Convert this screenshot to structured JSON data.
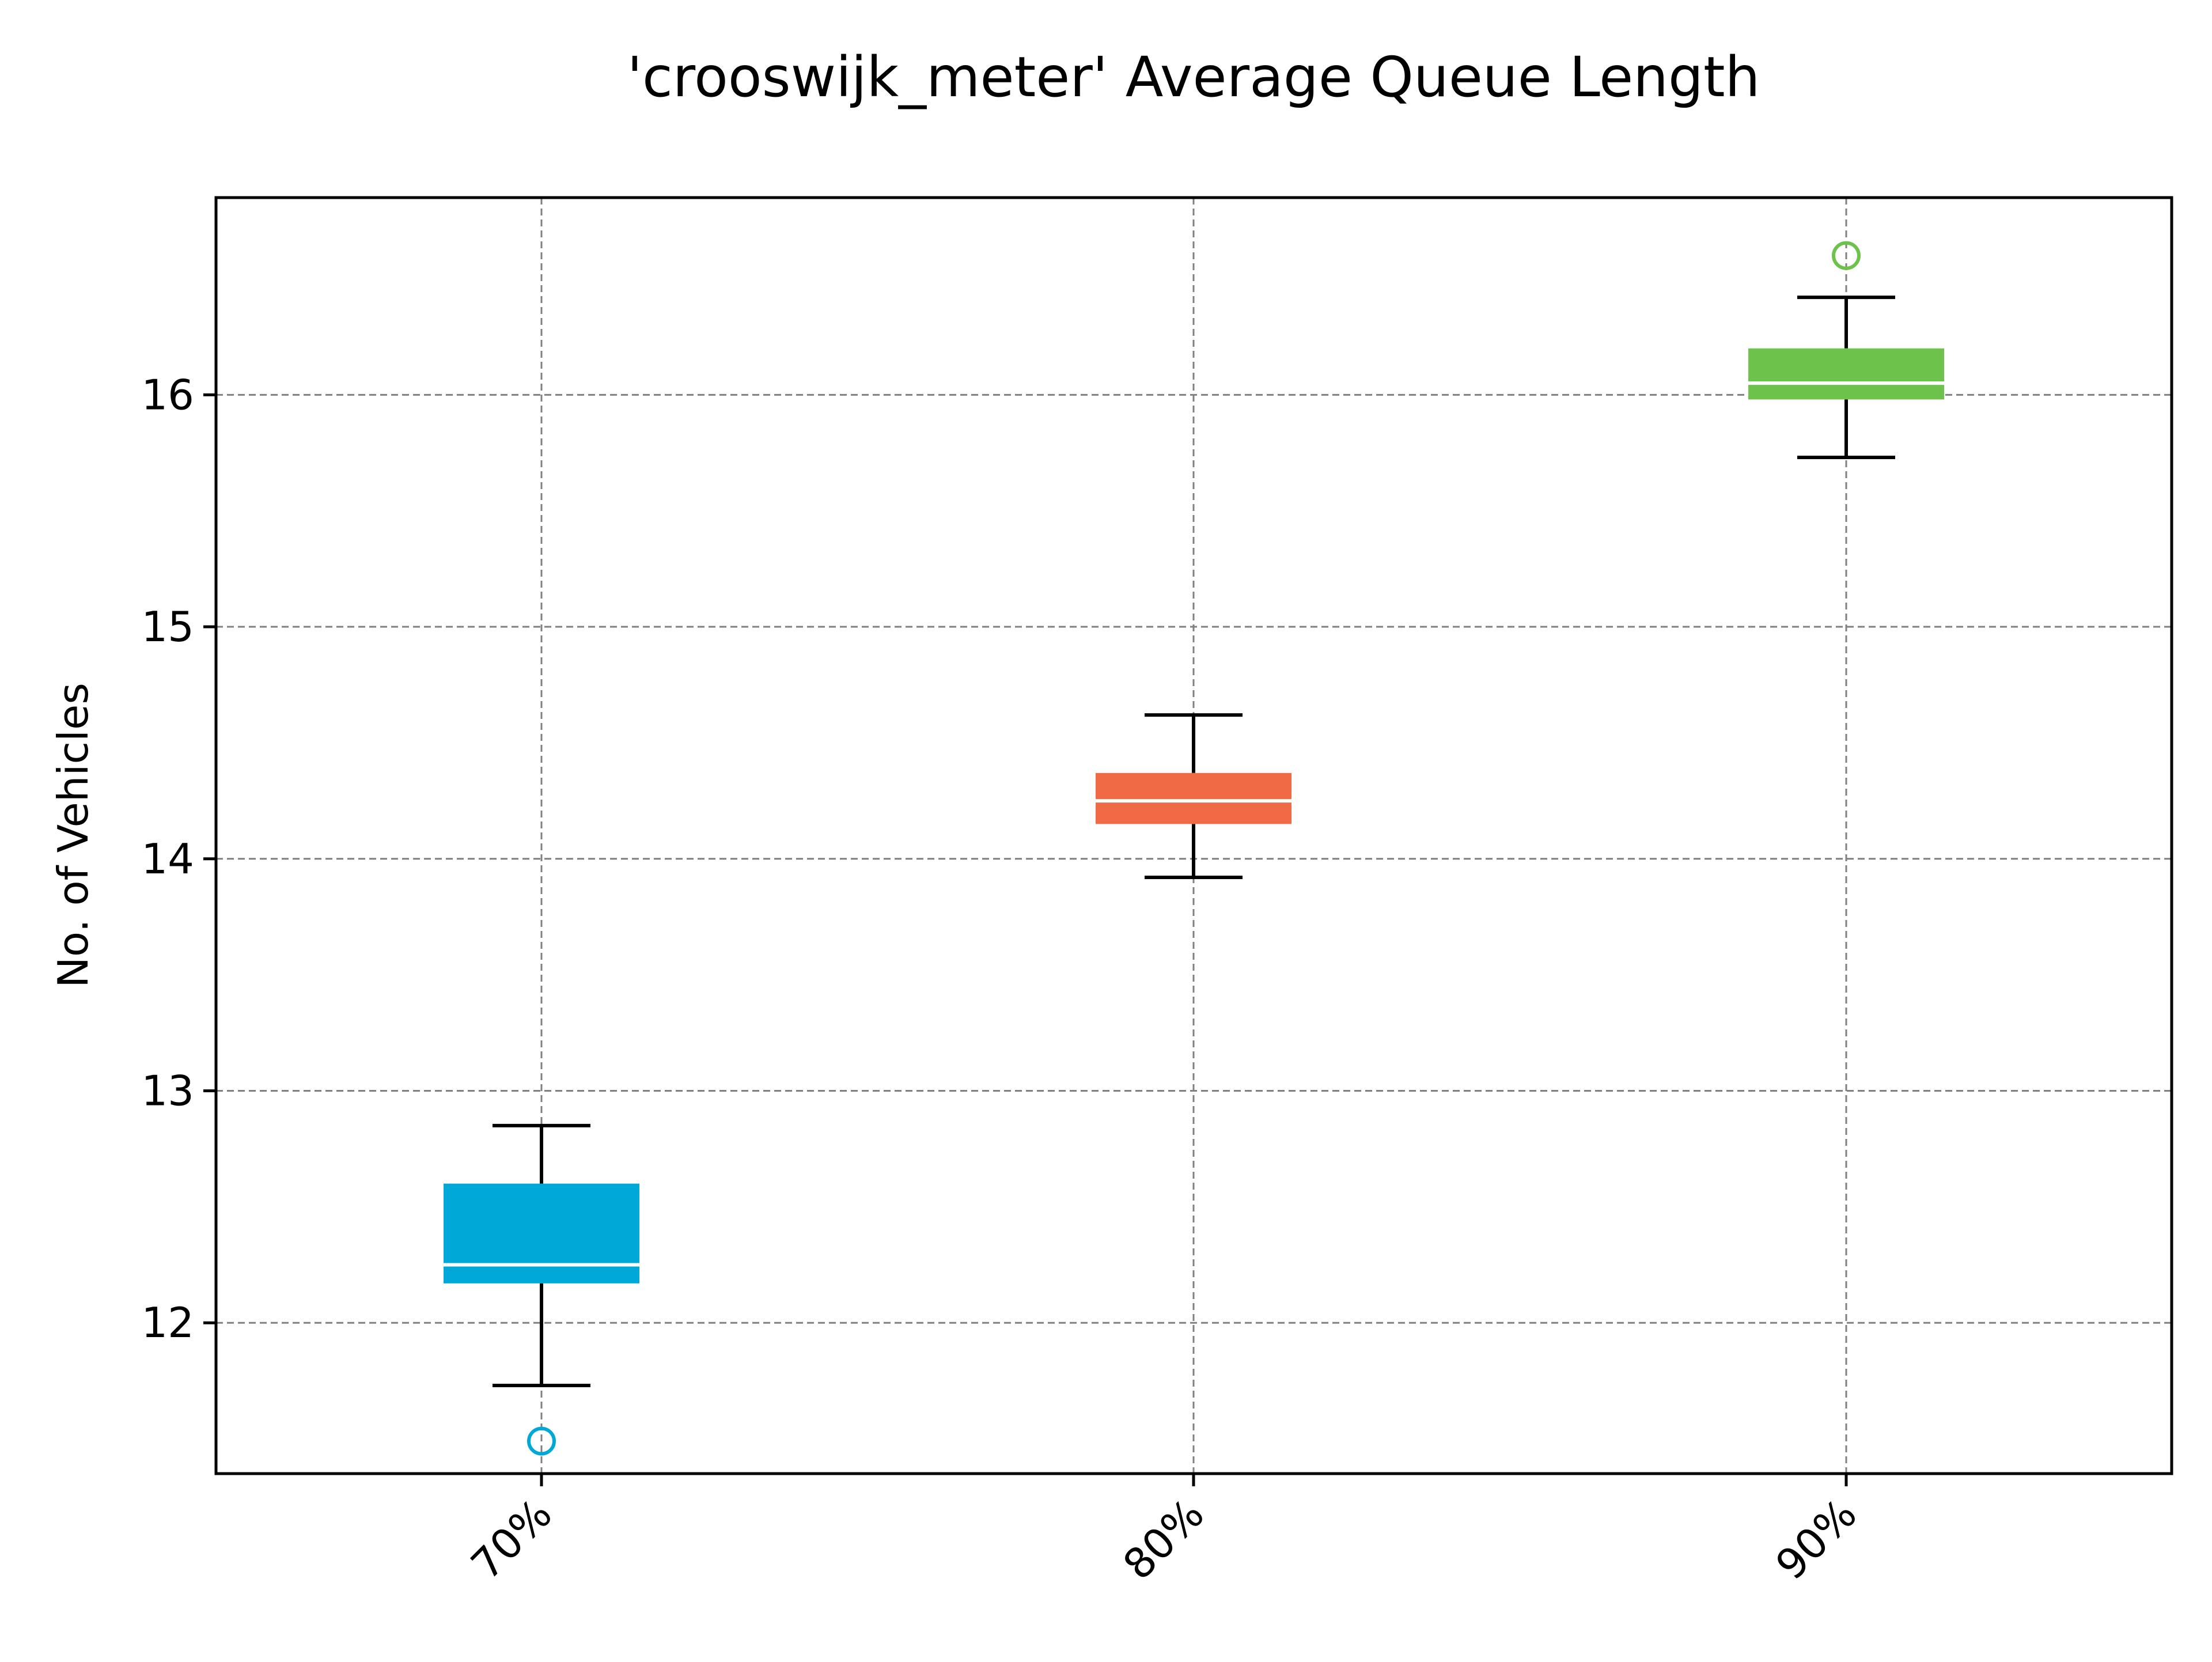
{
  "chart_data": {
    "type": "box",
    "title": "'crooswijk_meter' Average Queue Length",
    "xlabel": "",
    "ylabel": "No. of Vehicles",
    "categories": [
      "70%",
      "80%",
      "90%"
    ],
    "yticks": [
      12,
      13,
      14,
      15,
      16
    ],
    "ytick_labels": [
      "12",
      "13",
      "14",
      "15",
      "16"
    ],
    "ylim": [
      11.35,
      16.85
    ],
    "grid": true,
    "x_tick_rotation_deg": 45,
    "boxes": [
      {
        "category": "70%",
        "color": "#00a8d8",
        "whisker_low": 11.73,
        "q1": 12.17,
        "median": 12.25,
        "q3": 12.6,
        "whisker_high": 12.85,
        "fliers": [
          11.49
        ]
      },
      {
        "category": "80%",
        "color": "#ef6a45",
        "whisker_low": 13.92,
        "q1": 14.15,
        "median": 14.25,
        "q3": 14.37,
        "whisker_high": 14.62,
        "fliers": []
      },
      {
        "category": "90%",
        "color": "#6cc24a",
        "whisker_low": 15.73,
        "q1": 15.98,
        "median": 16.05,
        "q3": 16.2,
        "whisker_high": 16.42,
        "fliers": [
          16.6
        ]
      }
    ]
  }
}
